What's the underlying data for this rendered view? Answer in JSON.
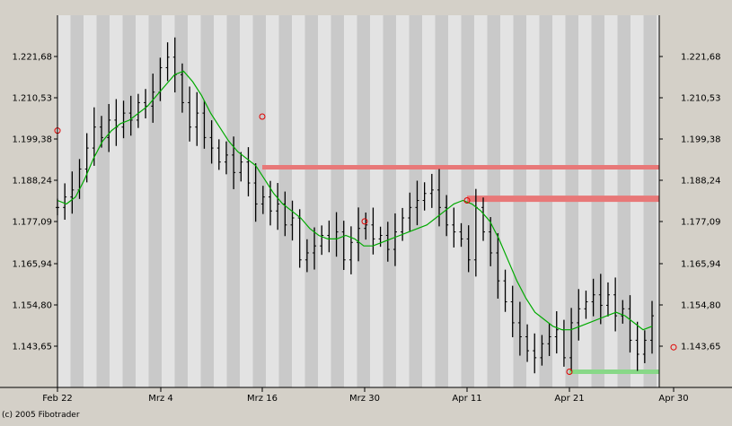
{
  "footer": {
    "copyright": "(c) 2005 Fibotrader"
  },
  "colors": {
    "background": "#d4d0c8",
    "plot_light": "#e3e3e3",
    "plot_dark": "#c9c9c9",
    "moving_average": "#00aa00",
    "resistance_zone": "#e87878",
    "support_zone": "#88d888",
    "signal_marker": "#e00000",
    "price_bars": "#000000"
  },
  "chart_data": {
    "type": "ohlc",
    "title": "",
    "xlabel": "",
    "ylabel": "",
    "x_tick_labels": [
      "Feb 22",
      "Mrz 4",
      "Mrz 16",
      "Mrz 30",
      "Apr 11",
      "Apr 21",
      "Apr 30"
    ],
    "y_tick_labels": [
      "1.221,68",
      "1.210,53",
      "1.199,38",
      "1.188,24",
      "1.177,09",
      "1.165,94",
      "1.154,80",
      "1.143,65"
    ],
    "y_axis_sides": "both",
    "grid": "alternating vertical bands",
    "ylim": [
      1.1335,
      1.24
    ],
    "series": [
      {
        "kind": "close",
        "values": [
          1.185,
          1.188,
          1.19,
          1.196,
          1.202,
          1.208,
          1.205,
          1.21,
          1.208,
          1.212,
          1.21,
          1.215,
          1.214,
          1.218,
          1.225,
          1.228,
          1.223,
          1.215,
          1.208,
          1.212,
          1.205,
          1.202,
          1.198,
          1.2,
          1.195,
          1.198,
          1.192,
          1.186,
          1.188,
          1.184,
          1.186,
          1.18,
          1.182,
          1.17,
          1.172,
          1.174,
          1.177,
          1.176,
          1.178,
          1.17,
          1.175,
          1.179,
          1.18,
          1.176,
          1.177,
          1.173,
          1.178,
          1.182,
          1.185,
          1.187,
          1.189,
          1.19,
          1.185,
          1.18,
          1.178,
          1.176,
          1.17,
          1.185,
          1.178,
          1.172,
          1.164,
          1.158,
          1.152,
          1.148,
          1.144,
          1.142,
          1.146,
          1.148,
          1.15,
          1.142,
          1.152,
          1.156,
          1.158,
          1.16,
          1.157,
          1.16,
          1.154,
          1.156,
          1.147,
          1.143,
          1.147,
          1.154
        ]
      },
      {
        "kind": "moving_average",
        "values": [
          1.187,
          1.186,
          1.188,
          1.193,
          1.199,
          1.204,
          1.207,
          1.209,
          1.21,
          1.212,
          1.214,
          1.217,
          1.22,
          1.223,
          1.224,
          1.221,
          1.217,
          1.212,
          1.208,
          1.204,
          1.201,
          1.199,
          1.197,
          1.193,
          1.189,
          1.186,
          1.184,
          1.182,
          1.179,
          1.177,
          1.176,
          1.176,
          1.177,
          1.176,
          1.174,
          1.174,
          1.175,
          1.176,
          1.177,
          1.178,
          1.179,
          1.18,
          1.182,
          1.184,
          1.186,
          1.187,
          1.186,
          1.184,
          1.181,
          1.176,
          1.17,
          1.164,
          1.159,
          1.155,
          1.153,
          1.151,
          1.15,
          1.15,
          1.151,
          1.152,
          1.153,
          1.154,
          1.155,
          1.154,
          1.152,
          1.15,
          1.151
        ]
      }
    ],
    "zones": [
      {
        "type": "resistance",
        "level": 1.1965,
        "start": "Mrz 16",
        "end": "Apr 30"
      },
      {
        "type": "resistance",
        "level": 1.1875,
        "start": "Apr 11",
        "end": "Apr 30"
      },
      {
        "type": "support",
        "level": 1.138,
        "start": "Apr 21",
        "end": "Apr 30"
      }
    ],
    "markers": [
      {
        "x": "Feb 22",
        "y": 1.207
      },
      {
        "x": "Mrz 16",
        "y": 1.211
      },
      {
        "x": "Mrz 30",
        "y": 1.181
      },
      {
        "x": "Apr 11",
        "y": 1.187
      },
      {
        "x": "Apr 21",
        "y": 1.138
      },
      {
        "x": "Apr 30",
        "y": 1.145
      }
    ]
  }
}
